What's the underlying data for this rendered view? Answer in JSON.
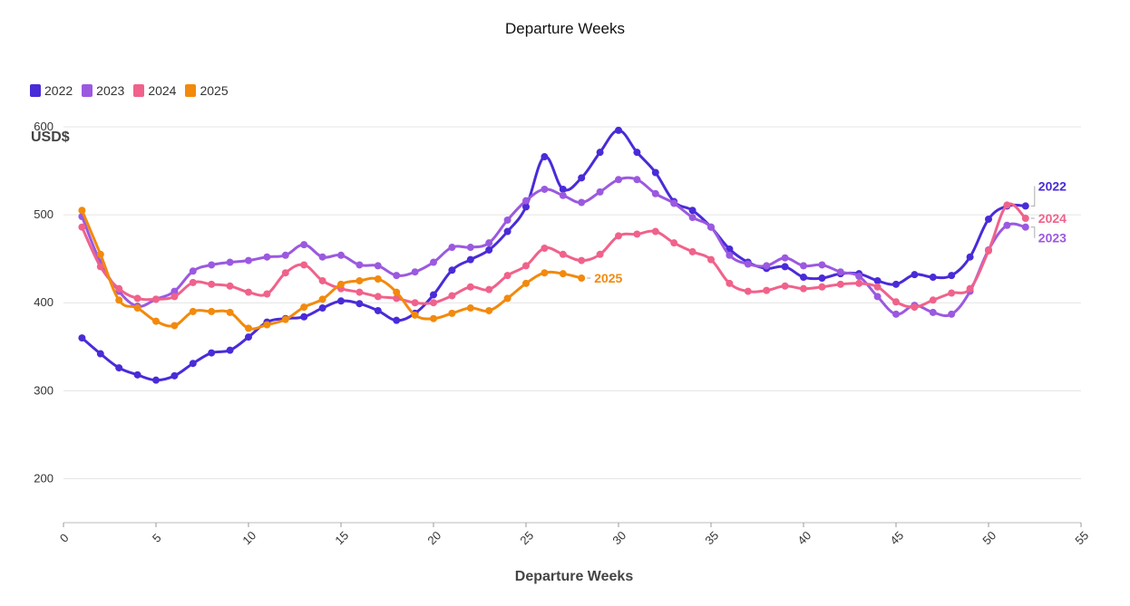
{
  "chart_data": {
    "type": "line",
    "title": "Departure Weeks",
    "xlabel": "Departure Weeks",
    "ylabel": "USD$",
    "xlim": [
      0,
      55
    ],
    "ylim": [
      150,
      600
    ],
    "xticks": [
      0,
      5,
      10,
      15,
      20,
      25,
      30,
      35,
      40,
      45,
      50,
      55
    ],
    "yticks": [
      200,
      300,
      400,
      500,
      600
    ],
    "grid": true,
    "legend_position": "top-left",
    "series": [
      {
        "name": "2022",
        "color": "#4a2bd8",
        "end_label": "2022",
        "x": [
          1,
          2,
          3,
          4,
          5,
          6,
          7,
          8,
          9,
          10,
          11,
          12,
          13,
          14,
          15,
          16,
          17,
          18,
          19,
          20,
          21,
          22,
          23,
          24,
          25,
          26,
          27,
          28,
          29,
          30,
          31,
          32,
          33,
          34,
          35,
          36,
          37,
          38,
          39,
          40,
          41,
          42,
          43,
          44,
          45,
          46,
          47,
          48,
          49,
          50,
          51,
          52
        ],
        "values": [
          360,
          342,
          326,
          318,
          312,
          317,
          331,
          343,
          346,
          361,
          378,
          382,
          384,
          394,
          402,
          399,
          391,
          380,
          388,
          409,
          437,
          449,
          460,
          481,
          509,
          566,
          529,
          542,
          571,
          596,
          571,
          548,
          515,
          505,
          486,
          461,
          446,
          439,
          441,
          429,
          428,
          433,
          433,
          425,
          421,
          432,
          429,
          431,
          452,
          495,
          510,
          510
        ]
      },
      {
        "name": "2023",
        "color": "#9b59e0",
        "end_label": "2023",
        "x": [
          1,
          2,
          3,
          4,
          5,
          6,
          7,
          8,
          9,
          10,
          11,
          12,
          13,
          14,
          15,
          16,
          17,
          18,
          19,
          20,
          21,
          22,
          23,
          24,
          25,
          26,
          27,
          28,
          29,
          30,
          31,
          32,
          33,
          34,
          35,
          36,
          37,
          38,
          39,
          40,
          41,
          42,
          43,
          44,
          45,
          46,
          47,
          48,
          49,
          50,
          51,
          52
        ],
        "values": [
          498,
          446,
          413,
          396,
          404,
          413,
          436,
          443,
          446,
          448,
          452,
          454,
          466,
          452,
          454,
          443,
          442,
          431,
          435,
          446,
          463,
          463,
          468,
          494,
          516,
          529,
          522,
          514,
          526,
          540,
          540,
          524,
          513,
          497,
          486,
          454,
          444,
          442,
          451,
          442,
          443,
          435,
          430,
          407,
          387,
          397,
          389,
          387,
          413,
          460,
          488,
          486
        ]
      },
      {
        "name": "2024",
        "color": "#f0628b",
        "end_label": "2024",
        "x": [
          1,
          2,
          3,
          4,
          5,
          6,
          7,
          8,
          9,
          10,
          11,
          12,
          13,
          14,
          15,
          16,
          17,
          18,
          19,
          20,
          21,
          22,
          23,
          24,
          25,
          26,
          27,
          28,
          29,
          30,
          31,
          32,
          33,
          34,
          35,
          36,
          37,
          38,
          39,
          40,
          41,
          42,
          43,
          44,
          45,
          46,
          47,
          48,
          49,
          50,
          51,
          52
        ],
        "values": [
          486,
          441,
          416,
          405,
          404,
          407,
          423,
          421,
          419,
          412,
          410,
          434,
          443,
          425,
          416,
          412,
          407,
          405,
          400,
          400,
          408,
          418,
          415,
          431,
          442,
          462,
          455,
          448,
          455,
          476,
          478,
          481,
          468,
          458,
          449,
          422,
          413,
          414,
          419,
          416,
          418,
          421,
          422,
          418,
          401,
          395,
          403,
          411,
          416,
          459,
          511,
          496
        ]
      },
      {
        "name": "2025",
        "color": "#f28a0d",
        "end_label": "2025",
        "x": [
          1,
          2,
          3,
          4,
          5,
          6,
          7,
          8,
          9,
          10,
          11,
          12,
          13,
          14,
          15,
          16,
          17,
          18,
          19,
          20,
          21,
          22,
          23,
          24,
          25,
          26,
          27,
          28
        ],
        "values": [
          505,
          455,
          403,
          394,
          379,
          374,
          390,
          390,
          389,
          371,
          375,
          381,
          395,
          404,
          421,
          425,
          427,
          412,
          386,
          382,
          388,
          394,
          391,
          405,
          422,
          434,
          433,
          428
        ]
      }
    ]
  }
}
